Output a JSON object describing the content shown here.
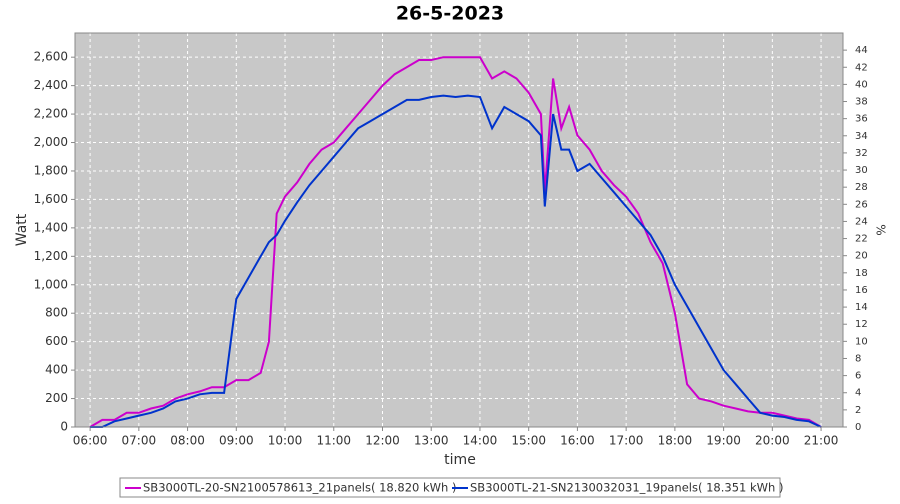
{
  "chart_data": {
    "type": "line",
    "title": "26-5-2023",
    "x_label": "time",
    "y_label": "Watt",
    "y2_label": "%",
    "x": [
      6,
      6.25,
      6.5,
      6.75,
      7,
      7.25,
      7.5,
      7.75,
      8,
      8.25,
      8.5,
      8.75,
      9,
      9.25,
      9.5,
      9.67,
      9.83,
      10,
      10.25,
      10.5,
      10.75,
      11,
      11.25,
      11.5,
      11.75,
      12,
      12.25,
      12.5,
      12.75,
      13,
      13.25,
      13.5,
      13.75,
      14,
      14.25,
      14.5,
      14.75,
      15,
      15.25,
      15.33,
      15.5,
      15.67,
      15.83,
      16,
      16.25,
      16.5,
      16.75,
      17,
      17.25,
      17.5,
      17.75,
      18,
      18.25,
      18.5,
      18.75,
      19,
      19.25,
      19.5,
      19.75,
      20,
      20.25,
      20.5,
      20.75,
      21
    ],
    "series": [
      {
        "name": "SB3000TL-20-SN2100578613_21panels( 18.820 kWh )",
        "color": "#cc00cc",
        "values": [
          0,
          50,
          50,
          100,
          100,
          130,
          150,
          200,
          230,
          250,
          280,
          280,
          330,
          330,
          380,
          600,
          1500,
          1620,
          1720,
          1850,
          1950,
          2000,
          2100,
          2200,
          2300,
          2400,
          2480,
          2530,
          2580,
          2580,
          2600,
          2600,
          2600,
          2600,
          2450,
          2500,
          2450,
          2350,
          2200,
          1650,
          2450,
          2100,
          2250,
          2050,
          1950,
          1800,
          1700,
          1620,
          1500,
          1300,
          1150,
          800,
          300,
          200,
          180,
          150,
          130,
          110,
          100,
          100,
          80,
          60,
          50,
          0
        ]
      },
      {
        "name": "SB3000TL-21-SN2130032031_19panels( 18.351 kWh )",
        "color": "#0033cc",
        "values": [
          0,
          0,
          40,
          60,
          80,
          100,
          130,
          180,
          200,
          230,
          240,
          240,
          900,
          1050,
          1200,
          1300,
          1350,
          1450,
          1580,
          1700,
          1800,
          1900,
          2000,
          2100,
          2150,
          2200,
          2250,
          2300,
          2300,
          2320,
          2330,
          2320,
          2330,
          2320,
          2100,
          2250,
          2200,
          2150,
          2050,
          1550,
          2200,
          1950,
          1950,
          1800,
          1850,
          1750,
          1650,
          1550,
          1450,
          1350,
          1200,
          1000,
          850,
          700,
          550,
          400,
          300,
          200,
          100,
          80,
          70,
          50,
          40,
          0
        ]
      }
    ],
    "xlim": [
      5.69,
      21.45
    ],
    "xticks": [
      {
        "value": 6,
        "label": "06:00"
      },
      {
        "value": 7,
        "label": "07:00"
      },
      {
        "value": 8,
        "label": "08:00"
      },
      {
        "value": 9,
        "label": "09:00"
      },
      {
        "value": 10,
        "label": "10:00"
      },
      {
        "value": 11,
        "label": "11:00"
      },
      {
        "value": 12,
        "label": "12:00"
      },
      {
        "value": 13,
        "label": "13:00"
      },
      {
        "value": 14,
        "label": "14:00"
      },
      {
        "value": 15,
        "label": "15:00"
      },
      {
        "value": 16,
        "label": "16:00"
      },
      {
        "value": 17,
        "label": "17:00"
      },
      {
        "value": 18,
        "label": "18:00"
      },
      {
        "value": 19,
        "label": "19:00"
      },
      {
        "value": 20,
        "label": "20:00"
      },
      {
        "value": 21,
        "label": "21:00"
      }
    ],
    "ylim": [
      0,
      2770
    ],
    "yticks": [
      0,
      200,
      400,
      600,
      800,
      {
        "value": 1000,
        "label": "1,000"
      },
      {
        "value": 1200,
        "label": "1,200"
      },
      {
        "value": 1400,
        "label": "1,400"
      },
      {
        "value": 1600,
        "label": "1,600"
      },
      {
        "value": 1800,
        "label": "1,800"
      },
      {
        "value": 2000,
        "label": "2,000"
      },
      {
        "value": 2200,
        "label": "2,200"
      },
      {
        "value": 2400,
        "label": "2,400"
      },
      {
        "value": 2600,
        "label": "2,600"
      }
    ],
    "y2lim": [
      0,
      46
    ],
    "y2ticks": [
      0,
      2,
      4,
      6,
      8,
      10,
      12,
      14,
      16,
      18,
      20,
      22,
      24,
      26,
      28,
      30,
      32,
      34,
      36,
      38,
      40,
      42,
      44
    ],
    "grid": true,
    "legend": "bottom"
  }
}
